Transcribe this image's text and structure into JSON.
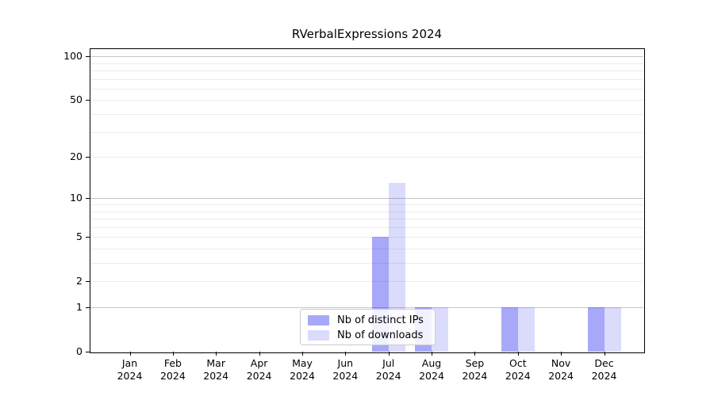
{
  "chart_data": {
    "type": "bar",
    "title": "RVerbalExpressions 2024",
    "categories": [
      "Jan",
      "Feb",
      "Mar",
      "Apr",
      "May",
      "Jun",
      "Jul",
      "Aug",
      "Sep",
      "Oct",
      "Nov",
      "Dec"
    ],
    "category_years": [
      "2024",
      "2024",
      "2024",
      "2024",
      "2024",
      "2024",
      "2024",
      "2024",
      "2024",
      "2024",
      "2024",
      "2024"
    ],
    "series": [
      {
        "name": "Nb of distinct IPs",
        "color_hex": "#a8a8f8",
        "color_rgba": "rgba(0,0,235,0.34)",
        "values": [
          0,
          0,
          0,
          0,
          0,
          0,
          5,
          1,
          0,
          1,
          0,
          1
        ]
      },
      {
        "name": "Nb of downloads",
        "color_hex": "#dcdcfa",
        "color_rgba": "rgba(0,0,235,0.14)",
        "values": [
          0,
          0,
          0,
          0,
          0,
          0,
          13,
          1,
          0,
          1,
          0,
          1
        ]
      }
    ],
    "yscale": "log1p",
    "yticks": [
      0,
      1,
      2,
      5,
      10,
      20,
      50,
      100
    ],
    "major_gridlines": [
      1,
      10,
      100
    ],
    "minor_gridlines": [
      2,
      3,
      4,
      5,
      6,
      7,
      8,
      9,
      20,
      30,
      40,
      50,
      60,
      70,
      80,
      90
    ],
    "ylim": [
      0,
      112
    ],
    "grid": true,
    "legend_position": "lower center",
    "xlabel": "",
    "ylabel": ""
  },
  "colors": {
    "axis": "#000000",
    "major_grid": "#c6c6c6",
    "minor_grid": "#ececec",
    "legend_border": "#cccccc",
    "background": "#ffffff"
  }
}
